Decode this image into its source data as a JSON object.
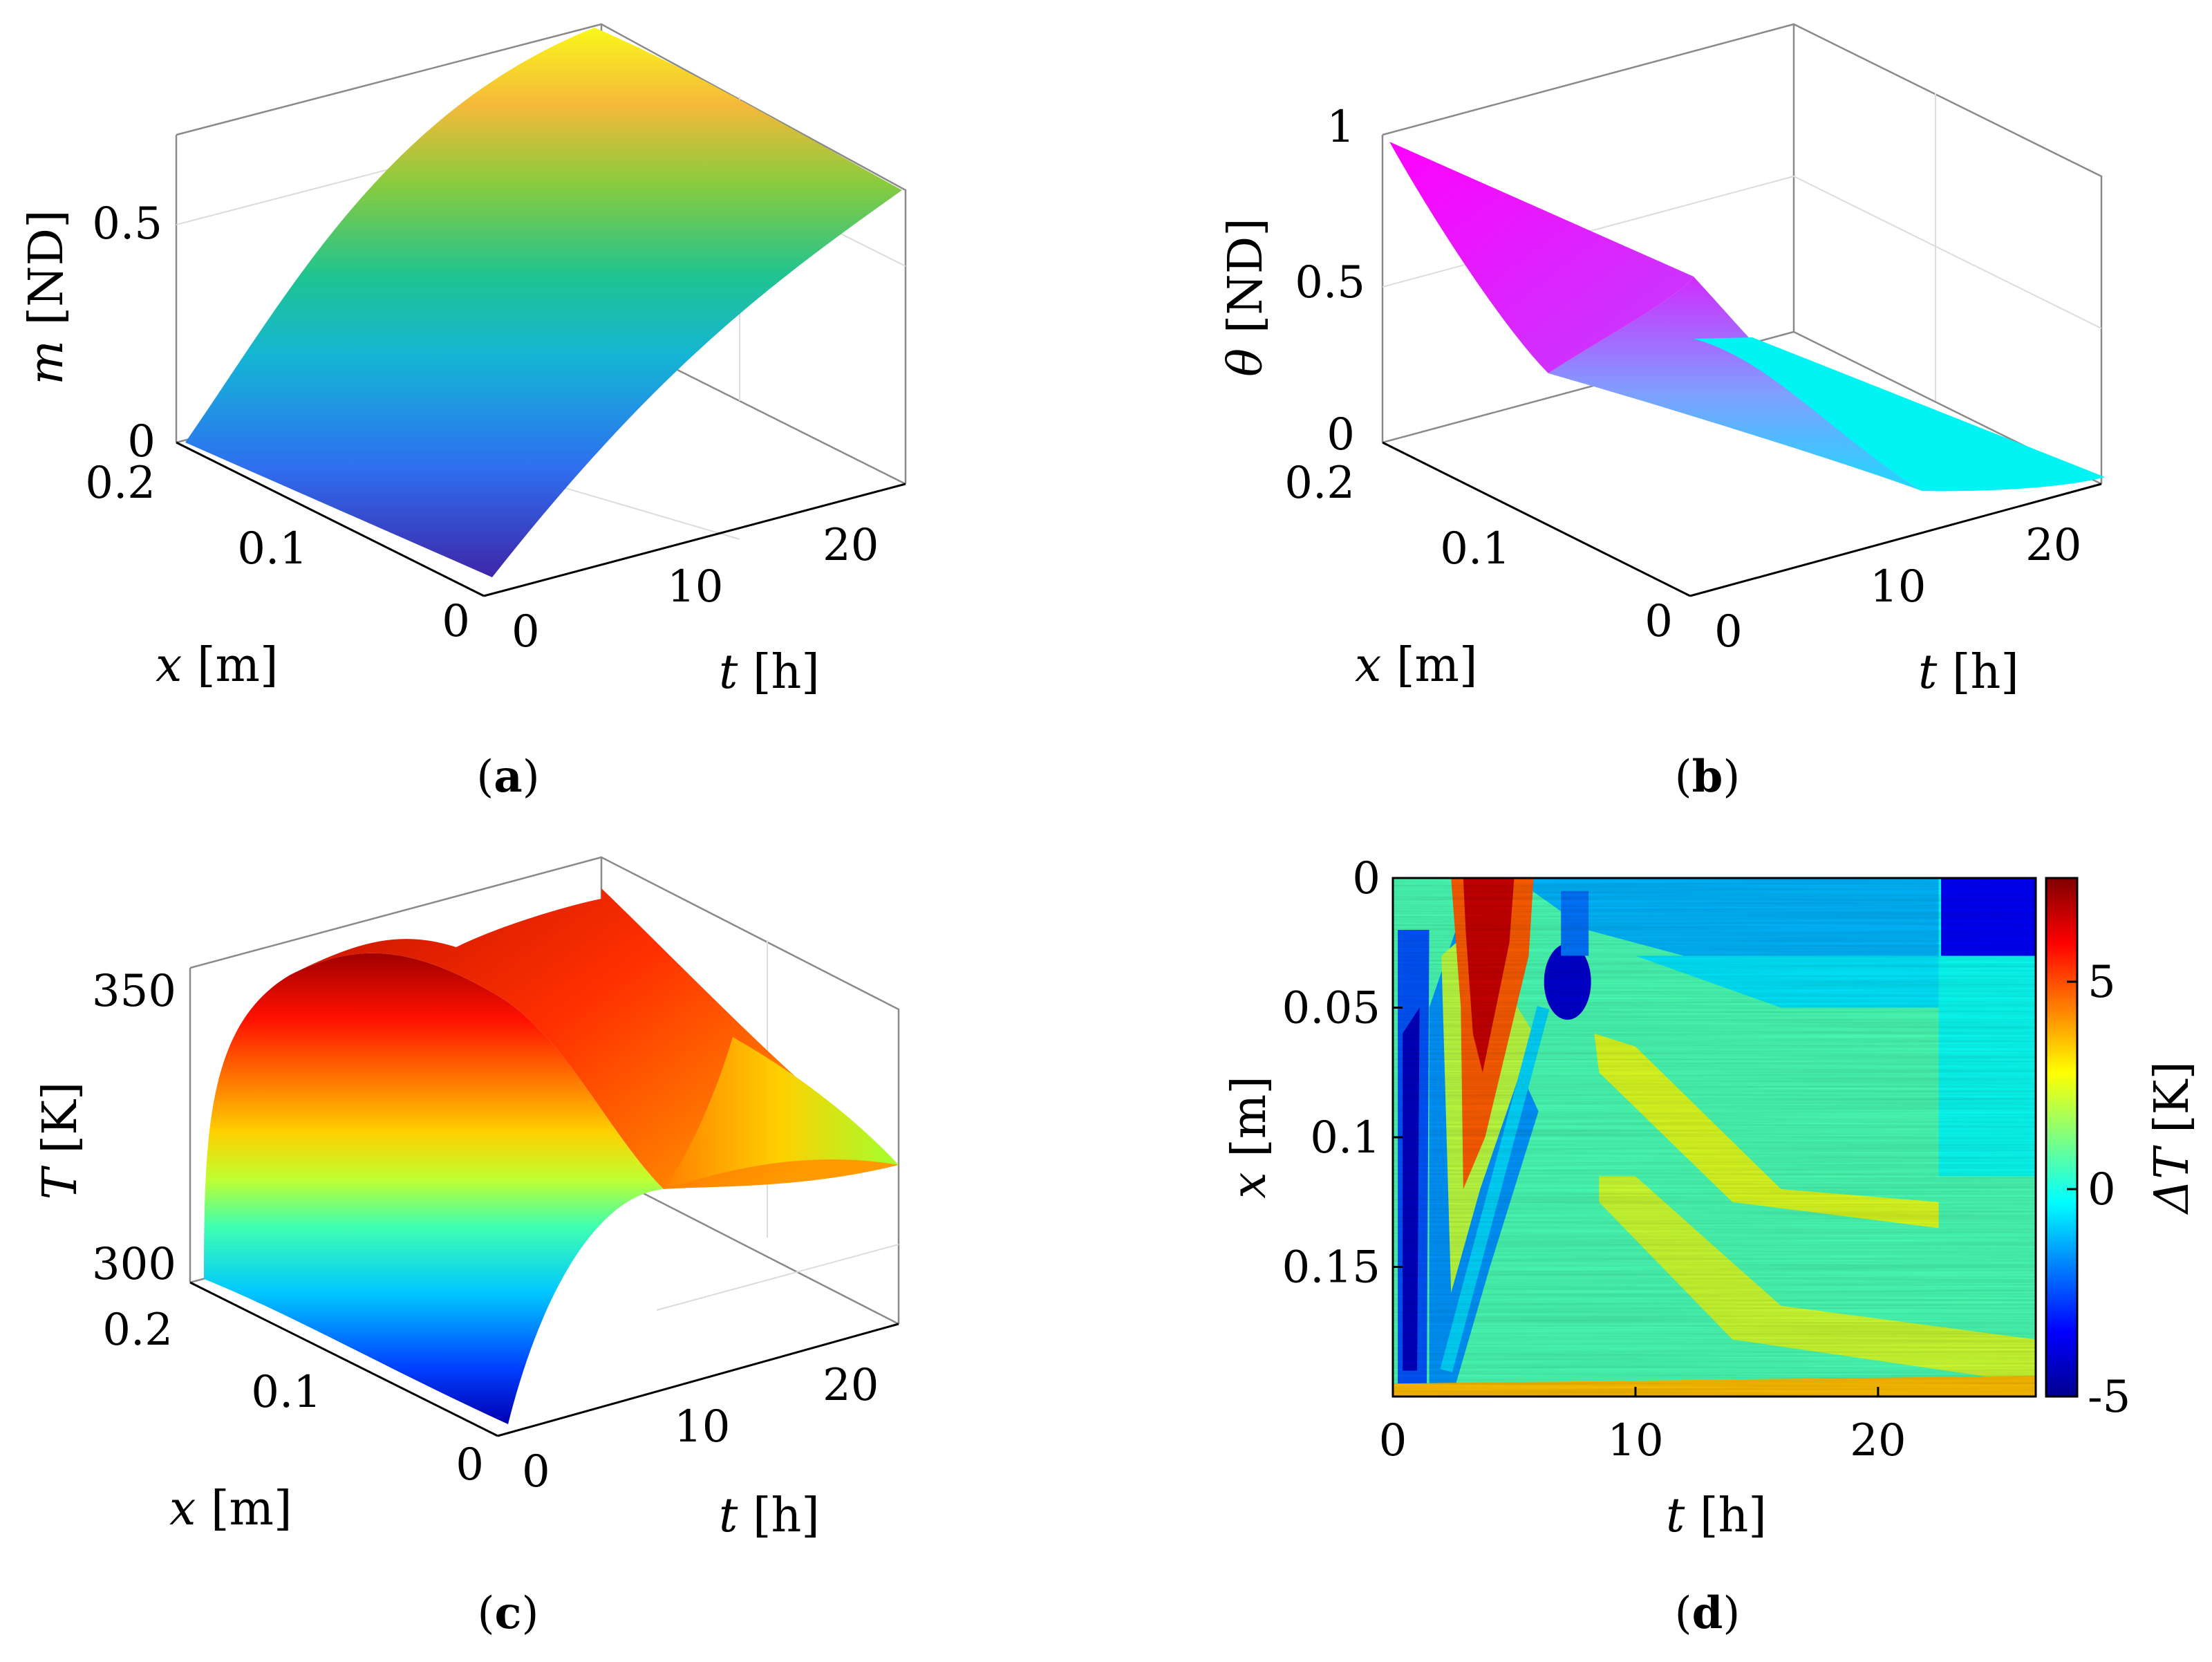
{
  "chart_data": [
    {
      "panel": "a",
      "caption_letter": "a",
      "type": "surface3d",
      "xlabel_var": "t",
      "xlabel_unit": "[h]",
      "ylabel_var": "x",
      "ylabel_unit": "[m]",
      "zlabel_var": "m",
      "zlabel_unit": "[ND]",
      "t_ticks": [
        "0",
        "10",
        "20"
      ],
      "x_ticks": [
        "0",
        "0.1",
        "0.2"
      ],
      "z_ticks": [
        "0",
        "0.5"
      ],
      "t_range": [
        0,
        24
      ],
      "x_range": [
        0,
        0.2
      ],
      "z_range": [
        0,
        0.7
      ],
      "colormap": "parula",
      "profile_t": [
        0,
        2,
        4,
        6,
        8,
        10,
        12,
        14,
        16,
        18,
        20,
        22,
        24
      ],
      "profile_z": [
        0.0,
        0.1,
        0.2,
        0.3,
        0.38,
        0.45,
        0.51,
        0.56,
        0.6,
        0.63,
        0.65,
        0.66,
        0.66
      ]
    },
    {
      "panel": "b",
      "caption_letter": "b",
      "type": "surface3d",
      "xlabel_var": "t",
      "xlabel_unit": "[h]",
      "ylabel_var": "x",
      "ylabel_unit": "[m]",
      "zlabel_var": "θ",
      "zlabel_unit": "[ND]",
      "t_ticks": [
        "0",
        "10",
        "20"
      ],
      "x_ticks": [
        "0",
        "0.1",
        "0.2"
      ],
      "z_ticks": [
        "0",
        "0.5",
        "1"
      ],
      "t_range": [
        0,
        24
      ],
      "x_range": [
        0,
        0.2
      ],
      "z_range": [
        0,
        1
      ],
      "colormap": "cool"
    },
    {
      "panel": "c",
      "caption_letter": "c",
      "type": "surface3d",
      "xlabel_var": "t",
      "xlabel_unit": "[h]",
      "ylabel_var": "x",
      "ylabel_unit": "[m]",
      "zlabel_var": "T",
      "zlabel_unit": "[K]",
      "t_ticks": [
        "0",
        "10",
        "20"
      ],
      "x_ticks": [
        "0",
        "0.1",
        "0.2"
      ],
      "z_ticks": [
        "300",
        "350"
      ],
      "t_range": [
        0,
        24
      ],
      "x_range": [
        0,
        0.2
      ],
      "z_range": [
        298,
        360
      ],
      "colormap": "jet"
    },
    {
      "panel": "d",
      "caption_letter": "d",
      "type": "heatmap",
      "xlabel_var": "t",
      "xlabel_unit": "[h]",
      "ylabel_var": "x",
      "ylabel_unit": "[m]",
      "colorbar_label_var": "ΔT",
      "colorbar_label_unit": "[K]",
      "x_ticks": [
        "0",
        "10",
        "20"
      ],
      "y_ticks": [
        "0",
        "0.05",
        "0.1",
        "0.15"
      ],
      "colorbar_ticks": [
        "5",
        "0",
        "-5"
      ],
      "x_range": [
        0,
        26.5
      ],
      "y_range": [
        0,
        0.2
      ],
      "color_range": [
        -5,
        7.5
      ],
      "colormap": "jet"
    }
  ]
}
